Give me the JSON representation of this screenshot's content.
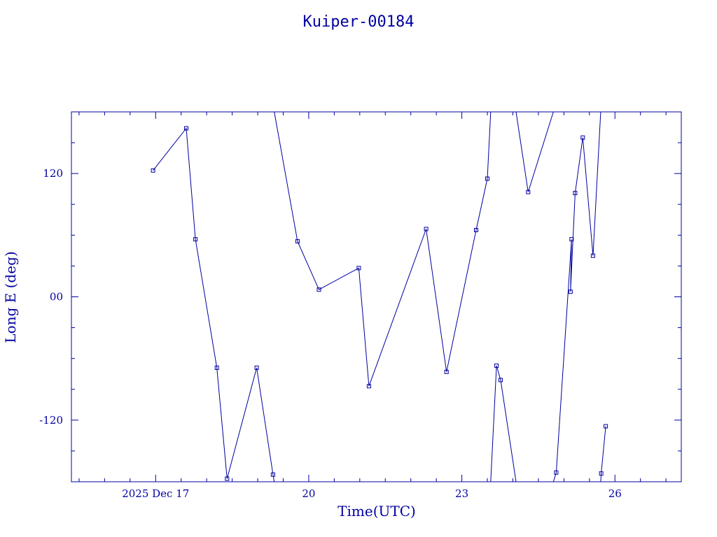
{
  "chart_data": {
    "type": "line",
    "title": "Kuiper-00184",
    "xlabel": "Time(UTC)",
    "ylabel": "Long E (deg)",
    "x_unit": "days (December 2025, UTC)",
    "xlim": [
      15.35,
      27.3
    ],
    "ylim": [
      -180,
      180
    ],
    "x_ticks": [
      {
        "value": 17,
        "label": "2025 Dec 17"
      },
      {
        "value": 20,
        "label": "20"
      },
      {
        "value": 23,
        "label": "23"
      },
      {
        "value": 26,
        "label": "26"
      }
    ],
    "y_ticks": [
      {
        "value": 120,
        "label": "120"
      },
      {
        "value": 0,
        "label": "00"
      },
      {
        "value": -120,
        "label": "-120"
      }
    ],
    "segments": [
      {
        "points": [
          [
            16.95,
            123
          ],
          [
            17.6,
            164
          ],
          [
            17.78,
            56
          ],
          [
            18.2,
            -69
          ],
          [
            18.4,
            -177
          ],
          [
            18.98,
            -69
          ],
          [
            19.3,
            -173
          ]
        ],
        "wrap_end": true
      },
      {
        "points": [
          [
            19.78,
            54
          ],
          [
            20.2,
            7
          ],
          [
            20.98,
            28
          ],
          [
            21.18,
            -87
          ],
          [
            22.3,
            66
          ],
          [
            22.7,
            -73
          ],
          [
            23.28,
            65
          ],
          [
            23.5,
            115
          ]
        ],
        "wrap_start": true,
        "wrap_end": true
      },
      {
        "points": [
          [
            23.68,
            -67
          ],
          [
            23.76,
            -81
          ]
        ],
        "wrap_start": true,
        "wrap_end": true
      },
      {
        "points": [
          [
            24.3,
            102
          ]
        ],
        "wrap_start": true,
        "wrap_end": true
      },
      {
        "points": [
          [
            24.85,
            -171
          ],
          [
            25.15,
            56
          ],
          [
            25.13,
            5
          ],
          [
            25.22,
            101
          ],
          [
            25.37,
            155
          ],
          [
            25.57,
            40
          ]
        ],
        "wrap_start": true,
        "wrap_end": true
      },
      {
        "points": [
          [
            25.73,
            -172
          ],
          [
            25.82,
            -126
          ]
        ],
        "wrap_start": true
      }
    ],
    "grid": false,
    "color": "#0000a0"
  }
}
